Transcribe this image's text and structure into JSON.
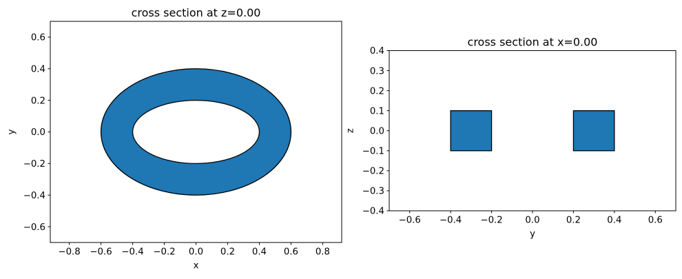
{
  "figure": {
    "background": "#ffffff"
  },
  "colors": {
    "patch_fill": "#1f77b4",
    "patch_edge": "#000000",
    "spine": "#000000",
    "text": "#000000"
  },
  "chart_data": [
    {
      "type": "area",
      "title": "cross section at z=0.00",
      "xlabel": "x",
      "ylabel": "y",
      "xlim": [
        -0.92,
        0.92
      ],
      "ylim": [
        -0.7,
        0.7
      ],
      "grid": false,
      "legend": null,
      "xticks": {
        "values": [
          -0.8,
          -0.6,
          -0.4,
          -0.2,
          0.0,
          0.2,
          0.4,
          0.6,
          0.8
        ],
        "labels": [
          "−0.8",
          "−0.6",
          "−0.4",
          "−0.2",
          "0.0",
          "0.2",
          "0.4",
          "0.6",
          "0.8"
        ]
      },
      "yticks": {
        "values": [
          0.6,
          0.4,
          0.2,
          0.0,
          -0.2,
          -0.4,
          -0.6
        ],
        "labels": [
          "0.6",
          "0.4",
          "0.2",
          "0.0",
          "−0.2",
          "−0.4",
          "−0.6"
        ]
      },
      "shapes": [
        {
          "kind": "elliptical_annulus",
          "center_x": 0.0,
          "center_y": 0.0,
          "outer_semi_x": 0.6,
          "outer_semi_y": 0.4,
          "inner_semi_x": 0.4,
          "inner_semi_y": 0.2,
          "fill_color": "#1f77b4",
          "edge_color": "#000000"
        }
      ]
    },
    {
      "type": "area",
      "title": "cross section at x=0.00",
      "xlabel": "y",
      "ylabel": "z",
      "xlim": [
        -0.7,
        0.7
      ],
      "ylim": [
        -0.4,
        0.4
      ],
      "grid": false,
      "legend": null,
      "xticks": {
        "values": [
          -0.6,
          -0.4,
          -0.2,
          0.0,
          0.2,
          0.4,
          0.6
        ],
        "labels": [
          "−0.6",
          "−0.4",
          "−0.2",
          "0.0",
          "0.2",
          "0.4",
          "0.6"
        ]
      },
      "yticks": {
        "values": [
          0.4,
          0.3,
          0.2,
          0.1,
          0.0,
          -0.1,
          -0.2,
          -0.3,
          -0.4
        ],
        "labels": [
          "0.4",
          "0.3",
          "0.2",
          "0.1",
          "0.0",
          "−0.1",
          "−0.2",
          "−0.3",
          "−0.4"
        ]
      },
      "shapes": [
        {
          "kind": "rect",
          "x_range": [
            -0.4,
            -0.2
          ],
          "y_range": [
            -0.1,
            0.1
          ],
          "fill_color": "#1f77b4",
          "edge_color": "#000000"
        },
        {
          "kind": "rect",
          "x_range": [
            0.2,
            0.4
          ],
          "y_range": [
            -0.1,
            0.1
          ],
          "fill_color": "#1f77b4",
          "edge_color": "#000000"
        }
      ]
    }
  ]
}
